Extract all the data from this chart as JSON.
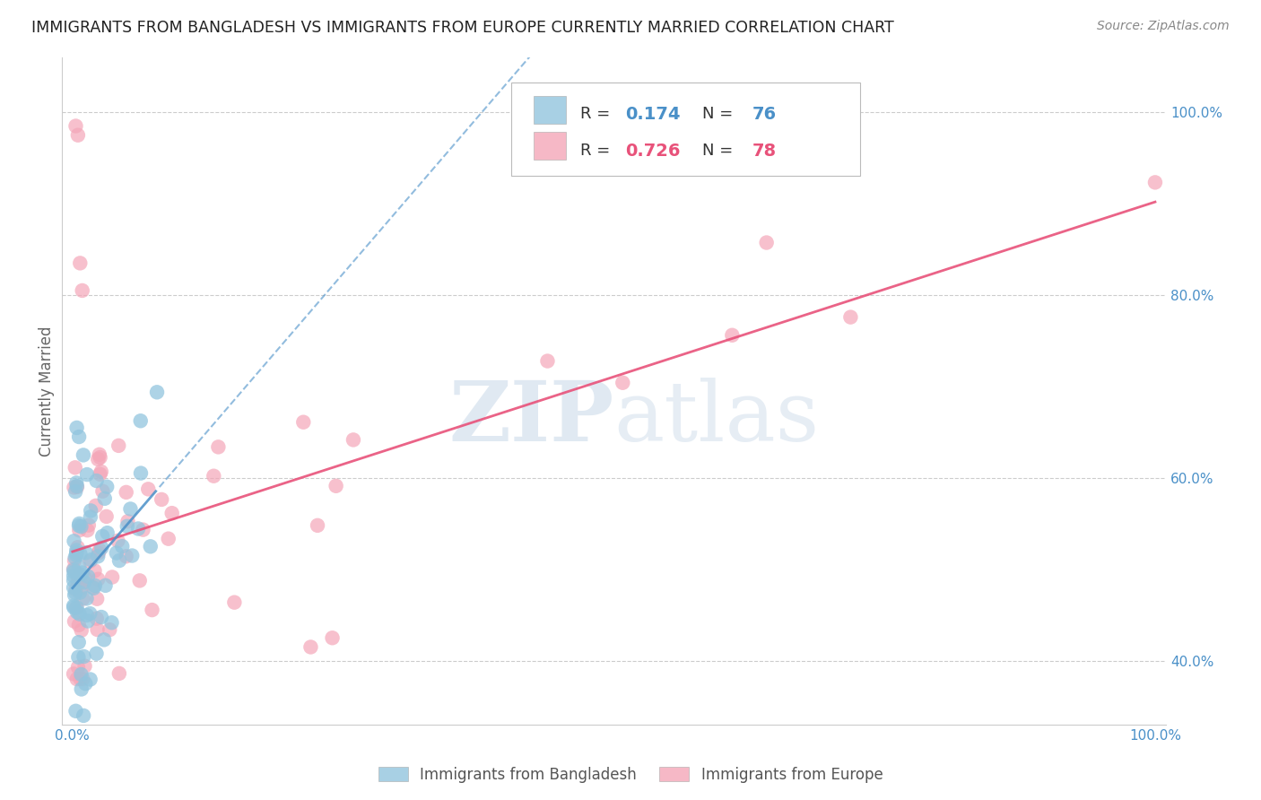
{
  "title": "IMMIGRANTS FROM BANGLADESH VS IMMIGRANTS FROM EUROPE CURRENTLY MARRIED CORRELATION CHART",
  "source": "Source: ZipAtlas.com",
  "ylabel": "Currently Married",
  "legend_label_blue": "Immigrants from Bangladesh",
  "legend_label_pink": "Immigrants from Europe",
  "R_blue": 0.174,
  "N_blue": 76,
  "R_pink": 0.726,
  "N_pink": 78,
  "blue_scatter_color": "#92C5DE",
  "pink_scatter_color": "#F4A6B8",
  "blue_line_color": "#4A90C8",
  "pink_line_color": "#E8527A",
  "watermark_color": "#C8D8E8",
  "grid_color": "#CCCCCC",
  "tick_color": "#4A90C8",
  "title_color": "#222222",
  "source_color": "#888888",
  "ylabel_color": "#666666",
  "ylim_min": 0.33,
  "ylim_max": 1.06,
  "xlim_min": -0.01,
  "xlim_max": 1.01
}
